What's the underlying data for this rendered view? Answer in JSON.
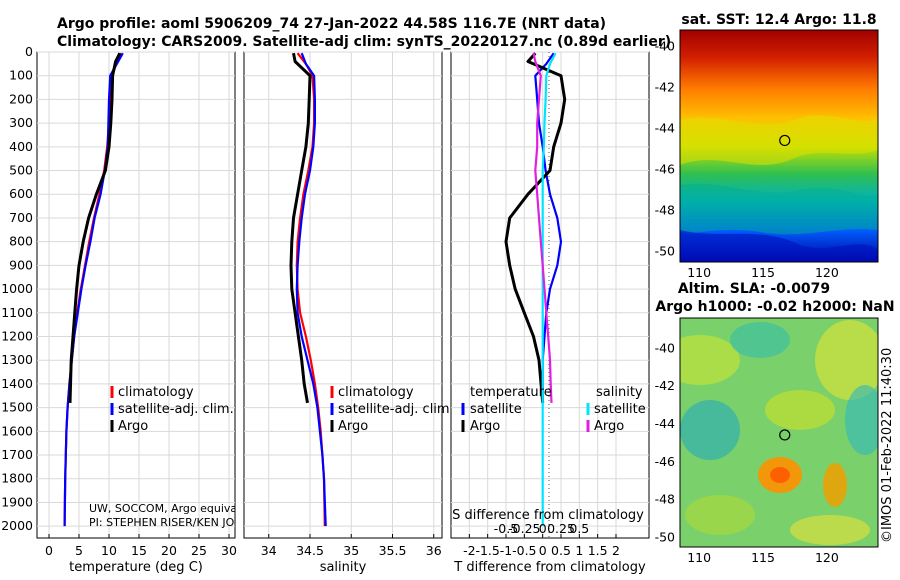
{
  "header": {
    "title_line1": "Argo profile: aoml 5906209_74 27-Jan-2022 44.58S 116.7E (NRT data)",
    "title_line2": "Climatology: CARS2009. Satellite-adj clim: synTS_20220127.nc (0.89d earlier)"
  },
  "colors": {
    "climatology": "#ff0000",
    "satellite": "#0000ff",
    "argo": "#000000",
    "sat_salinity": "#00e5ff",
    "argo_salinity": "#e020e0"
  },
  "chart_data": [
    {
      "type": "line",
      "name": "temperature",
      "xlabel": "temperature (deg C)",
      "xlim": [
        -2,
        31
      ],
      "ylim": [
        2050,
        0
      ],
      "xticks": [
        "0",
        "5",
        "10",
        "15",
        "20",
        "25",
        "30"
      ],
      "xtick_values": [
        0,
        5,
        10,
        15,
        20,
        25,
        30
      ],
      "yticks": [
        "0",
        "100",
        "200",
        "300",
        "400",
        "500",
        "600",
        "700",
        "800",
        "900",
        "1000",
        "1100",
        "1200",
        "1300",
        "1400",
        "1500",
        "1600",
        "1700",
        "1800",
        "1900",
        "2000"
      ],
      "legend": [
        "climatology",
        "satellite-adj. clim.",
        "Argo"
      ],
      "annotations": [
        "UW, SOCCOM, Argo equivale",
        "PI: STEPHEN RISER/KEN JOHN"
      ],
      "series": [
        {
          "name": "climatology",
          "color": "#ff0000",
          "x": [
            12.0,
            11.2,
            10.5,
            10.2,
            10.0,
            9.7,
            9.2,
            8.4,
            7.5,
            6.7,
            6.0,
            5.3,
            4.7,
            4.2,
            3.8,
            3.4,
            3.1,
            2.9,
            2.8,
            2.7,
            2.6
          ],
          "y": [
            5,
            50,
            100,
            200,
            300,
            400,
            500,
            600,
            700,
            800,
            900,
            1000,
            1100,
            1200,
            1300,
            1400,
            1500,
            1600,
            1700,
            1800,
            2000
          ]
        },
        {
          "name": "satellite-adj. clim.",
          "color": "#0000ff",
          "x": [
            12.3,
            11.3,
            10.2,
            10.0,
            9.9,
            9.8,
            9.3,
            8.6,
            7.6,
            6.9,
            6.1,
            5.4,
            4.8,
            4.2,
            3.8,
            3.4,
            3.1,
            2.9,
            2.8,
            2.7,
            2.6
          ],
          "y": [
            5,
            50,
            100,
            200,
            300,
            400,
            500,
            600,
            700,
            800,
            900,
            1000,
            1100,
            1200,
            1300,
            1400,
            1500,
            1600,
            1700,
            1800,
            2000
          ]
        },
        {
          "name": "Argo",
          "color": "#000000",
          "x": [
            11.8,
            11.1,
            10.6,
            10.5,
            10.3,
            10.0,
            9.4,
            7.9,
            6.6,
            5.7,
            5.0,
            4.6,
            4.3,
            4.0,
            3.7,
            3.5
          ],
          "y": [
            5,
            40,
            100,
            200,
            300,
            400,
            500,
            600,
            700,
            800,
            900,
            1000,
            1100,
            1200,
            1300,
            1480
          ]
        }
      ]
    },
    {
      "type": "line",
      "name": "salinity",
      "xlabel": "salinity",
      "xlim": [
        33.7,
        36.1
      ],
      "ylim": [
        2050,
        0
      ],
      "xticks": [
        "34",
        "34.5",
        "35",
        "35.5",
        "36"
      ],
      "xtick_values": [
        34,
        34.5,
        35,
        35.5,
        36
      ],
      "legend": [
        "climatology",
        "satellite-adj. clim.",
        "Argo"
      ],
      "series": [
        {
          "name": "climatology",
          "color": "#ff0000",
          "x": [
            34.35,
            34.45,
            34.53,
            34.55,
            34.55,
            34.53,
            34.48,
            34.42,
            34.38,
            34.35,
            34.34,
            34.35,
            34.38,
            34.45,
            34.51,
            34.56,
            34.6,
            34.63,
            34.65,
            34.67,
            34.68
          ],
          "y": [
            5,
            50,
            100,
            200,
            300,
            400,
            500,
            600,
            700,
            800,
            900,
            1000,
            1100,
            1200,
            1300,
            1400,
            1500,
            1600,
            1700,
            1800,
            2000
          ]
        },
        {
          "name": "satellite-adj. clim.",
          "color": "#0000ff",
          "x": [
            34.4,
            34.45,
            34.55,
            34.56,
            34.56,
            34.54,
            34.5,
            34.44,
            34.4,
            34.37,
            34.35,
            34.34,
            34.35,
            34.4,
            34.47,
            34.54,
            34.59,
            34.62,
            34.65,
            34.67,
            34.69
          ],
          "y": [
            5,
            50,
            100,
            200,
            300,
            400,
            500,
            600,
            700,
            800,
            900,
            1000,
            1100,
            1200,
            1300,
            1400,
            1500,
            1600,
            1700,
            1800,
            2000
          ]
        },
        {
          "name": "Argo",
          "color": "#000000",
          "x": [
            34.3,
            34.32,
            34.5,
            34.49,
            34.48,
            34.45,
            34.4,
            34.35,
            34.3,
            34.28,
            34.27,
            34.28,
            34.32,
            34.36,
            34.4,
            34.43,
            34.47
          ],
          "y": [
            5,
            40,
            100,
            200,
            300,
            400,
            500,
            600,
            700,
            800,
            900,
            1000,
            1100,
            1200,
            1300,
            1400,
            1480
          ]
        }
      ]
    },
    {
      "type": "line",
      "name": "difference",
      "xlabel": "T difference from climatology",
      "top_xlabel": "S difference from climatology",
      "xlim": [
        -2.5,
        2.9
      ],
      "ylim": [
        2050,
        0
      ],
      "xticks": [
        "-2",
        "-1.5",
        "-1",
        "-0.5",
        "0",
        "0.5",
        "1",
        "1.5",
        "2"
      ],
      "xtick_values": [
        -2,
        -1.5,
        -1,
        -0.5,
        0,
        0.5,
        1,
        1.5,
        2
      ],
      "top_xticks": [
        "-0.5",
        "-0.25",
        "0",
        "0.25",
        "0.5"
      ],
      "top_xtick_positions": [
        -1,
        -0.5,
        0,
        0.5,
        1
      ],
      "legend_temperature_title": "temperature",
      "legend_salinity_title": "salinity",
      "legend_entries": [
        "satellite",
        "Argo",
        "satellite",
        "Argo"
      ],
      "series": [
        {
          "name": "temperature satellite",
          "color": "#0000ff",
          "x": [
            0.3,
            0.1,
            -0.2,
            -0.15,
            -0.1,
            0.0,
            0.08,
            0.2,
            0.4,
            0.5,
            0.4,
            0.2,
            0.1,
            0.05,
            0.0,
            0.0
          ],
          "y": [
            5,
            50,
            100,
            200,
            300,
            400,
            500,
            600,
            700,
            800,
            900,
            1000,
            1100,
            1200,
            1300,
            1480
          ]
        },
        {
          "name": "temperature Argo",
          "color": "#000000",
          "x": [
            -0.2,
            -0.4,
            0.5,
            0.6,
            0.5,
            0.3,
            0.2,
            -0.4,
            -0.9,
            -1.0,
            -0.9,
            -0.75,
            -0.5,
            -0.25,
            -0.1,
            0.0
          ],
          "y": [
            5,
            40,
            100,
            200,
            300,
            400,
            500,
            600,
            700,
            800,
            900,
            1000,
            1100,
            1200,
            1300,
            1480
          ]
        },
        {
          "name": "salinity satellite",
          "color": "#00e5ff",
          "x": [
            0.35,
            0.2,
            0.1,
            0.08,
            0.05,
            0.03,
            0.0,
            0.0,
            0.0,
            0.0,
            0.0,
            0.0,
            0.0,
            0.0,
            0.0,
            0.0,
            0.0,
            0.0,
            0.0,
            0.0,
            0.0
          ],
          "y": [
            5,
            50,
            100,
            200,
            300,
            400,
            500,
            600,
            700,
            800,
            900,
            1000,
            1100,
            1200,
            1300,
            1400,
            1500,
            1600,
            1700,
            1800,
            2000
          ]
        },
        {
          "name": "salinity Argo",
          "color": "#e020e0",
          "x": [
            -0.25,
            -0.2,
            -0.05,
            -0.1,
            -0.15,
            -0.15,
            -0.2,
            -0.15,
            -0.1,
            -0.05,
            0.0,
            0.05,
            0.1,
            0.15,
            0.2,
            0.22,
            0.24
          ],
          "y": [
            5,
            40,
            100,
            200,
            300,
            400,
            500,
            600,
            700,
            800,
            900,
            1000,
            1100,
            1200,
            1300,
            1400,
            1480
          ]
        }
      ]
    },
    {
      "type": "heatmap",
      "name": "sst_map",
      "title": "sat. SST: 12.4 Argo: 11.8",
      "xticks": [
        "110",
        "115",
        "120"
      ],
      "xtick_values": [
        110,
        115,
        120
      ],
      "yticks": [
        "-40",
        "-42",
        "-44",
        "-46",
        "-48",
        "-50"
      ],
      "ytick_values": [
        -40,
        -42,
        -44,
        -46,
        -48,
        -50
      ],
      "xlim": [
        108.5,
        124
      ],
      "ylim": [
        -50.5,
        -39.2
      ],
      "marker": {
        "lon": 116.7,
        "lat": -44.58
      }
    },
    {
      "type": "heatmap",
      "name": "sla_map",
      "title_line1": "Altim. SLA: -0.0079",
      "title_line2": "Argo h1000: -0.02 h2000: NaN",
      "xticks": [
        "110",
        "115",
        "120"
      ],
      "xtick_values": [
        110,
        115,
        120
      ],
      "yticks": [
        "-40",
        "-42",
        "-44",
        "-46",
        "-48",
        "-50"
      ],
      "ytick_values": [
        -40,
        -42,
        -44,
        -46,
        -48,
        -50
      ],
      "xlim": [
        108.5,
        124
      ],
      "ylim": [
        -50.5,
        -38.4
      ],
      "marker": {
        "lon": 116.7,
        "lat": -44.58
      }
    }
  ],
  "watermark": "©IMOS 01-Feb-2022 11:40:30"
}
